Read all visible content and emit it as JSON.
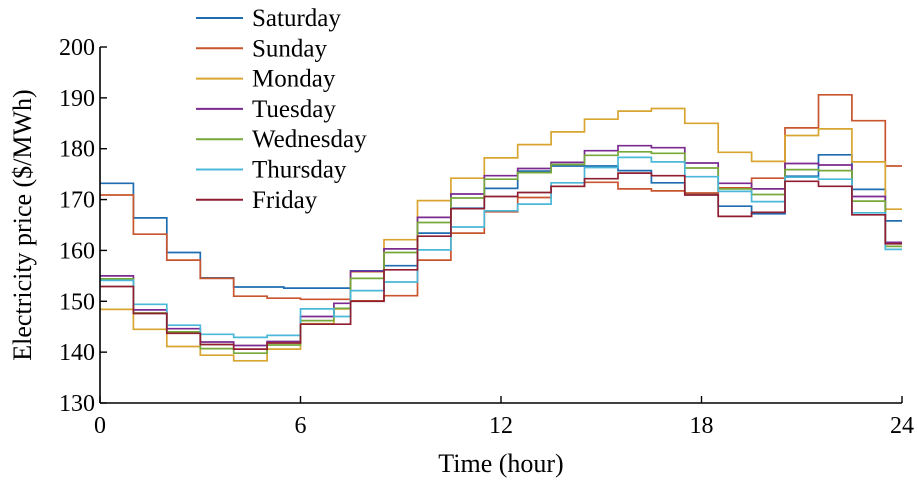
{
  "chart_data": {
    "type": "line",
    "xlabel": "Time (hour)",
    "ylabel": "Electricity price ($/MWh)",
    "xlim": [
      0,
      24
    ],
    "ylim": [
      130,
      200
    ],
    "xticks": [
      0,
      6,
      12,
      18,
      24
    ],
    "yticks": [
      130,
      140,
      150,
      160,
      170,
      180,
      190,
      200
    ],
    "grid": false,
    "legend_position": "top-left",
    "step": true,
    "step_hours": 0.5,
    "x": [
      0,
      0.5,
      1,
      1.5,
      2,
      2.5,
      3,
      3.5,
      4,
      4.5,
      5,
      5.5,
      6,
      6.5,
      7,
      7.5,
      8,
      8.5,
      9,
      9.5,
      10,
      10.5,
      11,
      11.5,
      12,
      12.5,
      13,
      13.5,
      14,
      14.5,
      15,
      15.5,
      16,
      16.5,
      17,
      17.5,
      18,
      18.5,
      19,
      19.5,
      20,
      20.5,
      21,
      21.5,
      22,
      22.5,
      23,
      23.5
    ],
    "series": [
      {
        "name": "Saturday",
        "color": "#1f6cb0",
        "values": [
          173.2,
          173.2,
          166.4,
          166.4,
          159.6,
          159.6,
          154.6,
          154.6,
          152.8,
          152.8,
          152.8,
          152.6,
          152.6,
          152.6,
          152.6,
          156.0,
          156.0,
          157.0,
          157.0,
          163.4,
          163.4,
          168.3,
          168.3,
          172.2,
          172.2,
          175.6,
          175.6,
          176.6,
          176.6,
          176.6,
          176.6,
          175.7,
          175.7,
          173.3,
          173.3,
          171.2,
          171.2,
          168.7,
          168.7,
          167.2,
          167.2,
          174.6,
          174.6,
          178.8,
          178.8,
          172.0,
          172.0,
          165.8
        ]
      },
      {
        "name": "Sunday",
        "color": "#c8552e",
        "values": [
          170.9,
          170.9,
          163.2,
          163.2,
          158.1,
          158.1,
          154.5,
          154.5,
          151.0,
          151.0,
          150.6,
          150.6,
          150.4,
          150.4,
          150.4,
          150.1,
          150.1,
          151.1,
          151.1,
          158.1,
          158.1,
          163.4,
          163.4,
          167.6,
          167.6,
          170.4,
          170.4,
          172.6,
          172.6,
          173.4,
          173.4,
          172.1,
          172.1,
          171.7,
          171.7,
          171.3,
          171.3,
          172.3,
          172.3,
          174.2,
          174.2,
          184.1,
          184.1,
          190.6,
          190.6,
          185.5,
          185.5,
          176.6
        ]
      },
      {
        "name": "Monday",
        "color": "#d9a531",
        "values": [
          148.4,
          148.4,
          144.5,
          144.5,
          141.1,
          141.1,
          139.4,
          139.4,
          138.3,
          138.3,
          140.6,
          140.6,
          145.6,
          145.6,
          148.5,
          155.8,
          155.8,
          162.1,
          162.1,
          169.8,
          169.8,
          174.2,
          174.2,
          178.2,
          178.2,
          180.8,
          180.8,
          183.3,
          183.3,
          185.8,
          185.8,
          187.4,
          187.4,
          187.9,
          187.9,
          185.0,
          185.0,
          179.3,
          179.3,
          177.5,
          177.5,
          182.6,
          182.6,
          183.9,
          183.9,
          177.4,
          177.4,
          168.1
        ]
      },
      {
        "name": "Tuesday",
        "color": "#7b2a8f",
        "values": [
          155.0,
          155.0,
          148.3,
          148.3,
          144.6,
          144.6,
          142.0,
          142.0,
          141.3,
          141.3,
          142.1,
          142.1,
          147.0,
          147.0,
          149.6,
          155.9,
          155.9,
          160.3,
          160.3,
          166.5,
          166.5,
          171.1,
          171.1,
          174.7,
          174.7,
          176.1,
          176.1,
          177.3,
          177.3,
          179.6,
          179.6,
          180.6,
          180.6,
          180.2,
          180.2,
          177.2,
          177.2,
          173.2,
          173.2,
          172.1,
          172.1,
          177.1,
          177.1,
          176.8,
          176.8,
          170.6,
          170.6,
          161.6
        ]
      },
      {
        "name": "Wednesday",
        "color": "#76a83a",
        "values": [
          154.4,
          154.4,
          147.7,
          147.7,
          144.0,
          144.0,
          140.7,
          140.7,
          139.8,
          139.8,
          141.4,
          141.4,
          146.2,
          146.2,
          148.6,
          154.5,
          154.5,
          159.6,
          159.6,
          165.5,
          165.5,
          170.3,
          170.3,
          174.0,
          174.0,
          175.3,
          175.3,
          176.9,
          176.9,
          178.7,
          178.7,
          179.4,
          179.4,
          179.1,
          179.1,
          176.2,
          176.2,
          172.1,
          172.1,
          171.0,
          171.0,
          175.9,
          175.9,
          175.7,
          175.7,
          169.7,
          169.7,
          160.8
        ]
      },
      {
        "name": "Thursday",
        "color": "#4ab8d8",
        "values": [
          154.1,
          154.1,
          149.4,
          149.4,
          145.3,
          145.3,
          143.5,
          143.5,
          142.9,
          142.9,
          143.3,
          143.3,
          148.5,
          148.5,
          147.0,
          152.1,
          152.1,
          153.8,
          153.8,
          160.1,
          160.1,
          164.6,
          164.6,
          167.8,
          167.8,
          169.1,
          169.1,
          173.3,
          173.3,
          176.3,
          176.3,
          178.3,
          178.3,
          177.4,
          177.4,
          174.5,
          174.5,
          171.6,
          171.6,
          169.6,
          169.6,
          174.4,
          174.4,
          174.0,
          174.0,
          167.4,
          167.4,
          160.2
        ]
      },
      {
        "name": "Friday",
        "color": "#8f1e31",
        "values": [
          152.9,
          152.9,
          147.6,
          147.6,
          143.7,
          143.7,
          141.5,
          141.5,
          140.6,
          140.6,
          141.8,
          141.8,
          145.5,
          145.5,
          145.5,
          150.0,
          150.0,
          156.2,
          156.2,
          162.8,
          162.8,
          168.2,
          168.2,
          170.6,
          170.6,
          171.4,
          171.4,
          172.6,
          172.6,
          174.1,
          174.1,
          175.2,
          175.2,
          174.7,
          174.7,
          170.9,
          170.9,
          166.7,
          166.7,
          167.5,
          167.5,
          173.6,
          173.6,
          172.6,
          172.6,
          167.0,
          167.0,
          161.3
        ]
      }
    ]
  }
}
